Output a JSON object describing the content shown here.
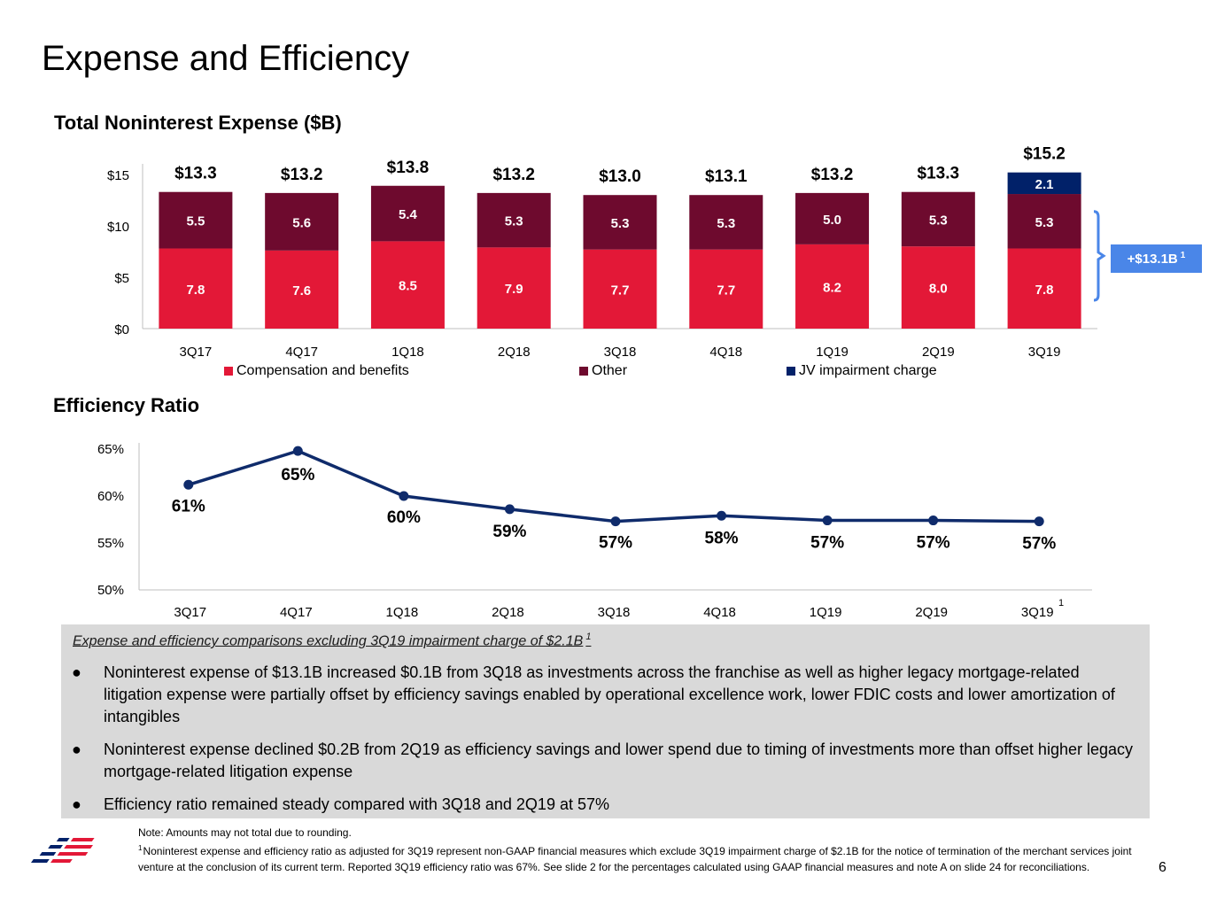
{
  "page_title": "Expense and Efficiency",
  "page_number": "6",
  "colors": {
    "compensation": "#e31837",
    "other": "#6e0a2e",
    "jv": "#012169",
    "ratio_line": "#0f2b6b",
    "callout": "#4a86e8",
    "callout_bracket": "#4a86e8",
    "bullets_bg": "#d9d9d9"
  },
  "expense_chart": {
    "title": "Total Noninterest Expense ($B)",
    "callout_label": "+$13.1B",
    "callout_footnote": "1",
    "legend": {
      "compensation": "Compensation and benefits",
      "other": "Other",
      "jv": "JV impairment charge"
    }
  },
  "ratio_chart": {
    "title": "Efficiency Ratio",
    "last_label_footnote": "1"
  },
  "chart_data": [
    {
      "type": "bar",
      "stacked": true,
      "title": "Total Noninterest Expense ($B)",
      "categories": [
        "3Q17",
        "4Q17",
        "1Q18",
        "2Q18",
        "3Q18",
        "4Q18",
        "1Q19",
        "2Q19",
        "3Q19"
      ],
      "series": [
        {
          "name": "Compensation and benefits",
          "values": [
            7.8,
            7.6,
            8.5,
            7.9,
            7.7,
            7.7,
            8.2,
            8.0,
            7.8
          ],
          "labels": [
            "7.8",
            "7.6",
            "8.5",
            "7.9",
            "7.7",
            "7.7",
            "8.2",
            "8.0",
            "7.8"
          ]
        },
        {
          "name": "Other",
          "values": [
            5.5,
            5.6,
            5.4,
            5.3,
            5.3,
            5.3,
            5.0,
            5.3,
            5.3
          ],
          "labels": [
            "5.5",
            "5.6",
            "5.4",
            "5.3",
            "5.3",
            "5.3",
            "5.0",
            "5.3",
            "5.3"
          ]
        },
        {
          "name": "JV impairment charge",
          "values": [
            0,
            0,
            0,
            0,
            0,
            0,
            0,
            0,
            2.1
          ],
          "labels": [
            "",
            "",
            "",
            "",
            "",
            "",
            "",
            "",
            "2.1"
          ]
        }
      ],
      "totals": [
        "$13.3",
        "$13.2",
        "$13.8",
        "$13.2",
        "$13.0",
        "$13.1",
        "$13.2",
        "$13.3",
        "$15.2"
      ],
      "yticks": [
        0,
        5,
        10,
        15
      ],
      "ytick_labels": [
        "$0",
        "$5",
        "$10",
        "$15"
      ],
      "ylim": [
        0,
        16
      ],
      "legend": "bottom"
    },
    {
      "type": "line",
      "title": "Efficiency Ratio",
      "categories": [
        "3Q17",
        "4Q17",
        "1Q18",
        "2Q18",
        "3Q18",
        "4Q18",
        "1Q19",
        "2Q19",
        "3Q19"
      ],
      "series": [
        {
          "values": [
            61.2,
            64.8,
            60.0,
            58.6,
            57.3,
            57.9,
            57.4,
            57.4,
            57.3
          ],
          "labels": [
            "61%",
            "65%",
            "60%",
            "59%",
            "57%",
            "58%",
            "57%",
            "57%",
            "57%"
          ]
        }
      ],
      "yticks": [
        50,
        55,
        60,
        65
      ],
      "ytick_labels": [
        "50%",
        "55%",
        "60%",
        "65%"
      ],
      "ylim": [
        50,
        65
      ]
    }
  ],
  "bullets": {
    "heading": "Expense and efficiency comparisons excluding 3Q19 impairment charge of $2.1B",
    "heading_footnote": "1",
    "items": [
      "Noninterest expense of $13.1B increased $0.1B from 3Q18 as investments across the franchise as well as higher legacy mortgage-related litigation expense were partially offset by efficiency savings enabled by operational excellence work, lower FDIC costs and lower amortization of intangibles",
      "Noninterest expense declined $0.2B from 2Q19 as efficiency savings and lower spend due to timing of investments more than offset higher legacy mortgage-related litigation expense",
      "Efficiency ratio remained steady compared with 3Q18 and 2Q19 at 57%"
    ]
  },
  "notes": {
    "line1": "Note: Amounts may not total due to rounding.",
    "footnote_marker": "1",
    "line2": "Noninterest expense and efficiency ratio as adjusted for 3Q19 represent non-GAAP financial measures which exclude 3Q19 impairment charge of $2.1B for the notice of termination of the merchant services joint venture at the conclusion of its current term. Reported 3Q19 efficiency ratio was 67%. See slide 2 for the percentages calculated using GAAP financial measures and note A on slide 24 for reconciliations."
  }
}
